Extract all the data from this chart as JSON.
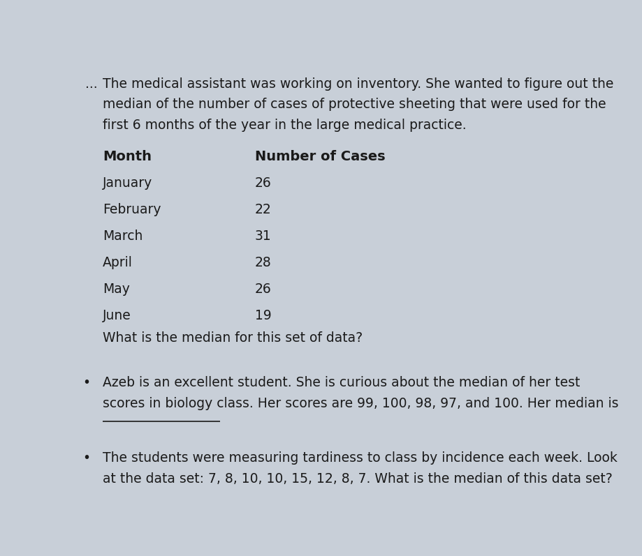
{
  "bg_color": "#c8cfd8",
  "text_color": "#1a1a1a",
  "title_paragraph": "The medical assistant was working on inventory. She wanted to figure out the\nmedian of the number of cases of protective sheeting that were used for the\nfirst 6 months of the year in the large medical practice.",
  "table_header": [
    "Month",
    "Number of Cases"
  ],
  "table_rows": [
    [
      "January",
      "26"
    ],
    [
      "February",
      "22"
    ],
    [
      "March",
      "31"
    ],
    [
      "April",
      "28"
    ],
    [
      "May",
      "26"
    ],
    [
      "June",
      "19"
    ]
  ],
  "question1": "What is the median for this set of data?",
  "paragraph2": "Azeb is an excellent student. She is curious about the median of her test\nscores in biology class. Her scores are 99, 100, 98, 97, and 100. Her median is",
  "paragraph3": "The students were measuring tardiness to class by incidence each week. Look\nat the data set: 7, 8, 10, 10, 15, 12, 8, 7. What is the median of this data set?",
  "bullet": "•",
  "dots_prefix": "...",
  "font_size_body": 13.5,
  "font_size_header": 14.0,
  "font_size_table": 13.5
}
